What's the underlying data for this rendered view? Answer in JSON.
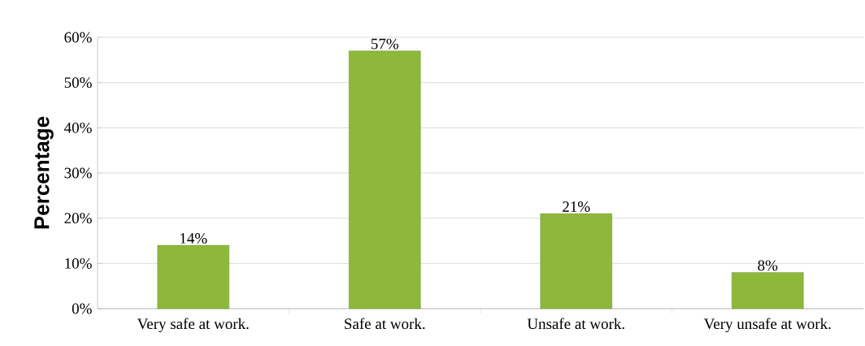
{
  "chart_data": {
    "type": "bar",
    "ylabel": "Percentage",
    "categories": [
      "Very safe at work.",
      "Safe at work.",
      "Unsafe at work.",
      "Very unsafe at work."
    ],
    "values": [
      14,
      57,
      21,
      8
    ],
    "value_labels": [
      "14%",
      "57%",
      "21%",
      "8%"
    ],
    "color": "#8db83a",
    "ylim": [
      0,
      60
    ],
    "yticks": [
      {
        "value": 0,
        "label": "0%"
      },
      {
        "value": 10,
        "label": "10%"
      },
      {
        "value": 20,
        "label": "20%"
      },
      {
        "value": 30,
        "label": "30%"
      },
      {
        "value": 40,
        "label": "40%"
      },
      {
        "value": 50,
        "label": "50%"
      },
      {
        "value": 60,
        "label": "60%"
      }
    ],
    "grid": "y"
  }
}
